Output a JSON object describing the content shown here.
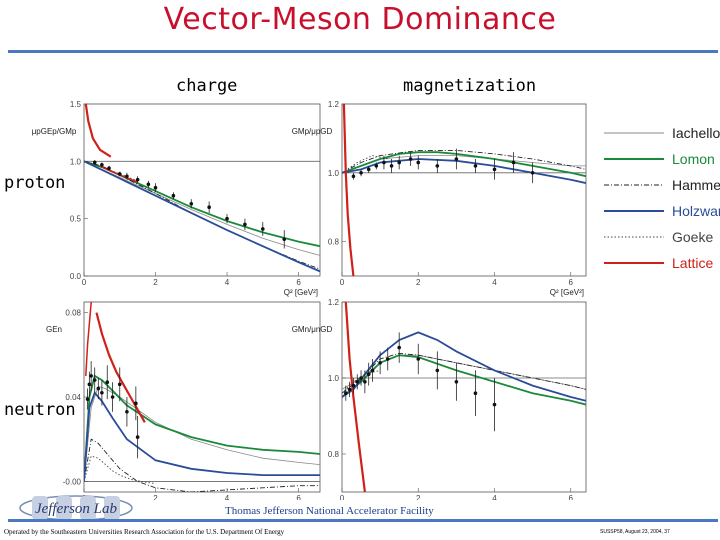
{
  "title": "Vector-Meson Dominance",
  "column_labels": {
    "charge": "charge",
    "magnetization": "magnetization"
  },
  "row_labels": {
    "proton": "proton",
    "neutron": "neutron"
  },
  "legend": [
    {
      "name": "Iachello",
      "color": "#888888",
      "style": "solid"
    },
    {
      "name": "Lomon",
      "color": "#1a8a3a",
      "style": "solid"
    },
    {
      "name": "Hammer",
      "color": "#222222",
      "style": "dashdot"
    },
    {
      "name": "Holzwarth",
      "color": "#2a4c9a",
      "style": "solid"
    },
    {
      "name": "Goeke",
      "color": "#444444",
      "style": "dotted"
    },
    {
      "name": "Lattice",
      "color": "#d0201a",
      "style": "solid"
    }
  ],
  "footer": {
    "lab": "Thomas Jefferson National Accelerator Facility",
    "operated": "Operated by the Southeastern Universities Research Association for the U.S. Department Of Energy",
    "event": "SUSSP58, August 23, 2004, 37",
    "logo_text": "Jefferson Lab"
  },
  "chart_data": [
    {
      "id": "proton-charge",
      "type": "line",
      "title": "",
      "ylabel": "μpGEp/GMp",
      "xlabel": "Q² [GeV²]",
      "xlim": [
        0,
        6.6
      ],
      "ylim": [
        0,
        1.5
      ],
      "xticks": [
        0,
        2,
        4,
        6
      ],
      "yticks": [
        0.0,
        0.5,
        1.0,
        1.5
      ],
      "ytick_labels": [
        "0.0",
        "0.5",
        "1.0",
        "1.5"
      ],
      "hline": 1.0,
      "series": [
        {
          "name": "Iachello",
          "x": [
            0.0,
            1.0,
            2.0,
            3.0,
            4.0,
            5.0,
            6.0,
            6.6
          ],
          "y": [
            1.0,
            0.86,
            0.72,
            0.58,
            0.45,
            0.33,
            0.23,
            0.18
          ]
        },
        {
          "name": "Lomon",
          "x": [
            0.0,
            0.5,
            1.0,
            2.0,
            3.0,
            4.0,
            5.0,
            6.0,
            6.6
          ],
          "y": [
            1.0,
            0.95,
            0.88,
            0.74,
            0.6,
            0.48,
            0.38,
            0.3,
            0.26
          ]
        },
        {
          "name": "Hammer",
          "x": [
            0.0,
            0.5,
            1.0,
            2.0,
            3.0,
            4.0,
            5.0,
            6.0,
            6.6
          ],
          "y": [
            1.0,
            0.96,
            0.88,
            0.72,
            0.55,
            0.4,
            0.26,
            0.13,
            0.06
          ]
        },
        {
          "name": "Holzwarth",
          "x": [
            0.0,
            1.0,
            2.0,
            3.0,
            4.0,
            5.0,
            6.0,
            6.6
          ],
          "y": [
            1.0,
            0.85,
            0.7,
            0.55,
            0.4,
            0.26,
            0.12,
            0.04
          ]
        },
        {
          "name": "Goeke",
          "x": [
            0.0,
            0.5,
            1.0,
            1.5
          ],
          "y": [
            1.0,
            0.95,
            0.89,
            0.83
          ]
        },
        {
          "name": "Lattice",
          "x": [
            0.05,
            0.12,
            0.25,
            0.45,
            0.75
          ],
          "y": [
            1.5,
            1.35,
            1.2,
            1.1,
            1.04
          ]
        },
        {
          "name": "Lattice-low",
          "x": [
            0.5,
            1.0,
            1.5
          ],
          "y": [
            0.95,
            0.88,
            0.82
          ]
        }
      ],
      "points": {
        "x": [
          0.3,
          0.5,
          0.7,
          1.0,
          1.2,
          1.5,
          1.8,
          2.0,
          2.5,
          3.0,
          3.5,
          4.0,
          4.5,
          5.0,
          5.6
        ],
        "y": [
          0.99,
          0.97,
          0.94,
          0.89,
          0.87,
          0.84,
          0.8,
          0.77,
          0.7,
          0.63,
          0.6,
          0.5,
          0.45,
          0.41,
          0.32
        ],
        "err": [
          0.02,
          0.02,
          0.02,
          0.02,
          0.03,
          0.03,
          0.03,
          0.04,
          0.03,
          0.04,
          0.05,
          0.04,
          0.05,
          0.06,
          0.08
        ]
      }
    },
    {
      "id": "proton-magnetization",
      "type": "line",
      "ylabel": "GMp/μpGD",
      "xlabel": "Q² [GeV²]",
      "xlim": [
        0,
        6.4
      ],
      "ylim": [
        0.7,
        1.2
      ],
      "xticks": [
        0,
        2,
        4,
        6
      ],
      "yticks": [
        0.8,
        1.0,
        1.2
      ],
      "ytick_labels": [
        "0.8",
        "1.0",
        "1.2"
      ],
      "hline": 1.0,
      "series": [
        {
          "name": "Iachello",
          "x": [
            0,
            1,
            2,
            3,
            4,
            5,
            6,
            6.4
          ],
          "y": [
            1.0,
            1.04,
            1.05,
            1.05,
            1.04,
            1.03,
            1.02,
            1.02
          ]
        },
        {
          "name": "Lomon",
          "x": [
            0,
            0.5,
            1,
            1.5,
            2,
            2.5,
            3,
            4,
            5,
            6,
            6.4
          ],
          "y": [
            1.0,
            1.02,
            1.04,
            1.055,
            1.06,
            1.06,
            1.055,
            1.04,
            1.02,
            1.0,
            0.99
          ]
        },
        {
          "name": "Hammer",
          "x": [
            0,
            0.5,
            1,
            2,
            3,
            4,
            5,
            6,
            6.4
          ],
          "y": [
            1.0,
            1.03,
            1.05,
            1.065,
            1.065,
            1.055,
            1.04,
            1.02,
            1.01
          ]
        },
        {
          "name": "Holzwarth",
          "x": [
            0,
            0.5,
            1,
            2,
            3,
            4,
            5,
            6,
            6.4
          ],
          "y": [
            1.0,
            1.01,
            1.03,
            1.04,
            1.035,
            1.02,
            1.0,
            0.98,
            0.97
          ]
        },
        {
          "name": "Goeke",
          "x": [
            0,
            0.4,
            0.8,
            1.2
          ],
          "y": [
            1.0,
            1.03,
            1.05,
            1.04
          ]
        },
        {
          "name": "Lattice",
          "x": [
            0.05,
            0.1,
            0.15,
            0.22,
            0.3
          ],
          "y": [
            1.2,
            1.0,
            0.88,
            0.78,
            0.7
          ]
        }
      ],
      "points": {
        "x": [
          0.3,
          0.5,
          0.7,
          0.9,
          1.1,
          1.3,
          1.5,
          1.8,
          2.0,
          2.5,
          3.0,
          3.5,
          4.0,
          4.5,
          5.0
        ],
        "y": [
          0.99,
          1.0,
          1.01,
          1.02,
          1.03,
          1.02,
          1.03,
          1.04,
          1.03,
          1.02,
          1.04,
          1.02,
          1.01,
          1.03,
          1.0
        ],
        "err": [
          0.01,
          0.01,
          0.01,
          0.01,
          0.02,
          0.02,
          0.02,
          0.02,
          0.02,
          0.02,
          0.03,
          0.02,
          0.03,
          0.03,
          0.03
        ]
      }
    },
    {
      "id": "neutron-charge",
      "type": "line",
      "ylabel": "GEn",
      "xlabel": "Q² [GeV²]",
      "xlim": [
        0,
        6.6
      ],
      "ylim": [
        -0.005,
        0.085
      ],
      "xticks": [
        0,
        2,
        4,
        6
      ],
      "yticks": [
        0.0,
        0.04,
        0.08
      ],
      "ytick_labels": [
        "-0.00",
        "0.04",
        "0.08"
      ],
      "hline": 0.0,
      "series": [
        {
          "name": "Iachello",
          "x": [
            0,
            0.2,
            0.4,
            0.6,
            1,
            2,
            3,
            4,
            5,
            6,
            6.6
          ],
          "y": [
            0,
            0.035,
            0.045,
            0.044,
            0.04,
            0.028,
            0.02,
            0.015,
            0.011,
            0.009,
            0.008
          ]
        },
        {
          "name": "Lomon",
          "x": [
            0,
            0.15,
            0.3,
            0.5,
            0.8,
            1.2,
            2,
            3,
            4,
            5,
            6,
            6.6
          ],
          "y": [
            0,
            0.04,
            0.05,
            0.048,
            0.043,
            0.036,
            0.027,
            0.021,
            0.017,
            0.015,
            0.014,
            0.013
          ]
        },
        {
          "name": "Hammer",
          "x": [
            0,
            0.2,
            0.4,
            0.7,
            1.0,
            1.5,
            2,
            2.5,
            3,
            4,
            5,
            6,
            6.6
          ],
          "y": [
            0,
            0.02,
            0.018,
            0.012,
            0.006,
            0.0,
            -0.003,
            -0.004,
            -0.005,
            -0.004,
            -0.003,
            -0.002,
            -0.002
          ]
        },
        {
          "name": "Holzwarth",
          "x": [
            0,
            0.15,
            0.3,
            0.5,
            0.8,
            1.2,
            2,
            3,
            4,
            5,
            6,
            6.6
          ],
          "y": [
            0,
            0.035,
            0.042,
            0.038,
            0.03,
            0.02,
            0.01,
            0.006,
            0.004,
            0.003,
            0.003,
            0.003
          ]
        },
        {
          "name": "Goeke",
          "x": [
            0,
            0.2,
            0.4,
            0.6,
            0.8,
            1.0,
            1.3,
            1.6,
            2.0
          ],
          "y": [
            0,
            0.012,
            0.011,
            0.008,
            0.005,
            0.003,
            0.001,
            0.0,
            -0.001
          ]
        },
        {
          "name": "Lattice",
          "x": [
            0.35,
            0.5,
            0.7,
            0.9,
            1.1,
            1.3,
            1.5,
            1.7
          ],
          "y": [
            0.08,
            0.07,
            0.06,
            0.052,
            0.046,
            0.04,
            0.034,
            0.028
          ]
        },
        {
          "name": "Lattice-steep",
          "x": [
            0.05,
            0.1,
            0.15,
            0.2
          ],
          "y": [
            0.05,
            0.065,
            0.075,
            0.085
          ]
        }
      ],
      "points": {
        "x": [
          0.1,
          0.15,
          0.2,
          0.3,
          0.4,
          0.5,
          0.65,
          0.8,
          1.0,
          1.2,
          1.45,
          1.5
        ],
        "y": [
          0.039,
          0.046,
          0.05,
          0.048,
          0.044,
          0.042,
          0.047,
          0.04,
          0.046,
          0.033,
          0.037,
          0.021
        ],
        "err": [
          0.005,
          0.006,
          0.007,
          0.006,
          0.005,
          0.006,
          0.008,
          0.007,
          0.008,
          0.007,
          0.008,
          0.01
        ]
      }
    },
    {
      "id": "neutron-magnetization",
      "type": "line",
      "ylabel": "GMn/μnGD",
      "xlabel": "Q² [GeV²]",
      "xlim": [
        0,
        6.4
      ],
      "ylim": [
        0.7,
        1.2
      ],
      "xticks": [
        0,
        2,
        4,
        6
      ],
      "yticks": [
        0.8,
        1.0,
        1.2
      ],
      "ytick_labels": [
        "0.8",
        "1.0",
        "1.2"
      ],
      "hline": 1.0,
      "series": [
        {
          "name": "Iachello",
          "x": [
            0,
            0.5,
            1,
            1.5,
            2,
            3,
            4,
            5,
            6,
            6.4
          ],
          "y": [
            0.97,
            1.0,
            1.04,
            1.06,
            1.06,
            1.04,
            1.02,
            1.0,
            0.98,
            0.97
          ]
        },
        {
          "name": "Lomon",
          "x": [
            0,
            0.5,
            1,
            1.5,
            2,
            3,
            4,
            5,
            6,
            6.4
          ],
          "y": [
            0.95,
            0.99,
            1.04,
            1.06,
            1.055,
            1.02,
            0.99,
            0.96,
            0.94,
            0.93
          ]
        },
        {
          "name": "Hammer",
          "x": [
            0,
            0.5,
            1,
            1.5,
            2,
            3,
            4,
            5,
            6,
            6.4
          ],
          "y": [
            0.96,
            1.0,
            1.05,
            1.065,
            1.06,
            1.04,
            1.02,
            1.0,
            0.98,
            0.97
          ]
        },
        {
          "name": "Holzwarth",
          "x": [
            0,
            0.3,
            0.6,
            1.0,
            1.5,
            2.0,
            2.5,
            3.0,
            4.0,
            5.0,
            6.0,
            6.4
          ],
          "y": [
            0.95,
            0.97,
            1.01,
            1.06,
            1.1,
            1.12,
            1.1,
            1.07,
            1.02,
            0.98,
            0.95,
            0.94
          ]
        },
        {
          "name": "Goeke",
          "x": [
            0,
            0.3,
            0.6,
            1.0
          ],
          "y": [
            0.96,
            0.99,
            1.01,
            1.02
          ]
        },
        {
          "name": "Lattice",
          "x": [
            0.1,
            0.2,
            0.3,
            0.45,
            0.6
          ],
          "y": [
            1.2,
            1.05,
            0.95,
            0.82,
            0.7
          ]
        }
      ],
      "points": {
        "x": [
          0.1,
          0.2,
          0.3,
          0.4,
          0.5,
          0.6,
          0.7,
          0.8,
          1.0,
          1.2,
          1.5,
          2.0,
          2.5,
          3.0,
          3.5,
          4.0
        ],
        "y": [
          0.96,
          0.97,
          0.98,
          0.99,
          1.0,
          0.99,
          1.01,
          1.02,
          1.04,
          1.05,
          1.08,
          1.05,
          1.02,
          0.99,
          0.96,
          0.93
        ],
        "err": [
          0.02,
          0.02,
          0.02,
          0.02,
          0.02,
          0.03,
          0.03,
          0.03,
          0.03,
          0.03,
          0.04,
          0.04,
          0.05,
          0.05,
          0.06,
          0.07
        ]
      }
    }
  ]
}
